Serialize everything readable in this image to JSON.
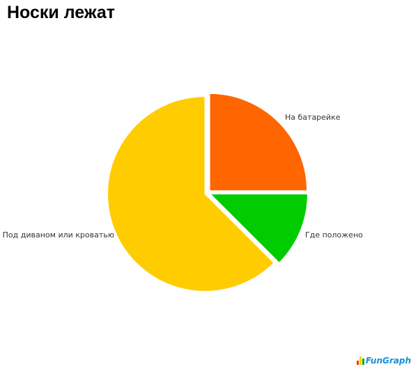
{
  "title": "Носки лежат",
  "chart_data": {
    "type": "pie",
    "title": "Носки лежат",
    "start_angle_deg": 0,
    "direction": "counterclockwise",
    "exploded": true,
    "slices": [
      {
        "label": "На батарейке",
        "value": 25,
        "color": "#ff6600"
      },
      {
        "label": "Под диваном или кроватью",
        "value": 62.5,
        "color": "#ffcc00"
      },
      {
        "label": "Где положено",
        "value": 12.5,
        "color": "#00cc00"
      }
    ]
  },
  "logo": {
    "text": "FunGraph",
    "bar_colors": [
      "#ff3300",
      "#ffcc00",
      "#00aa00"
    ]
  }
}
